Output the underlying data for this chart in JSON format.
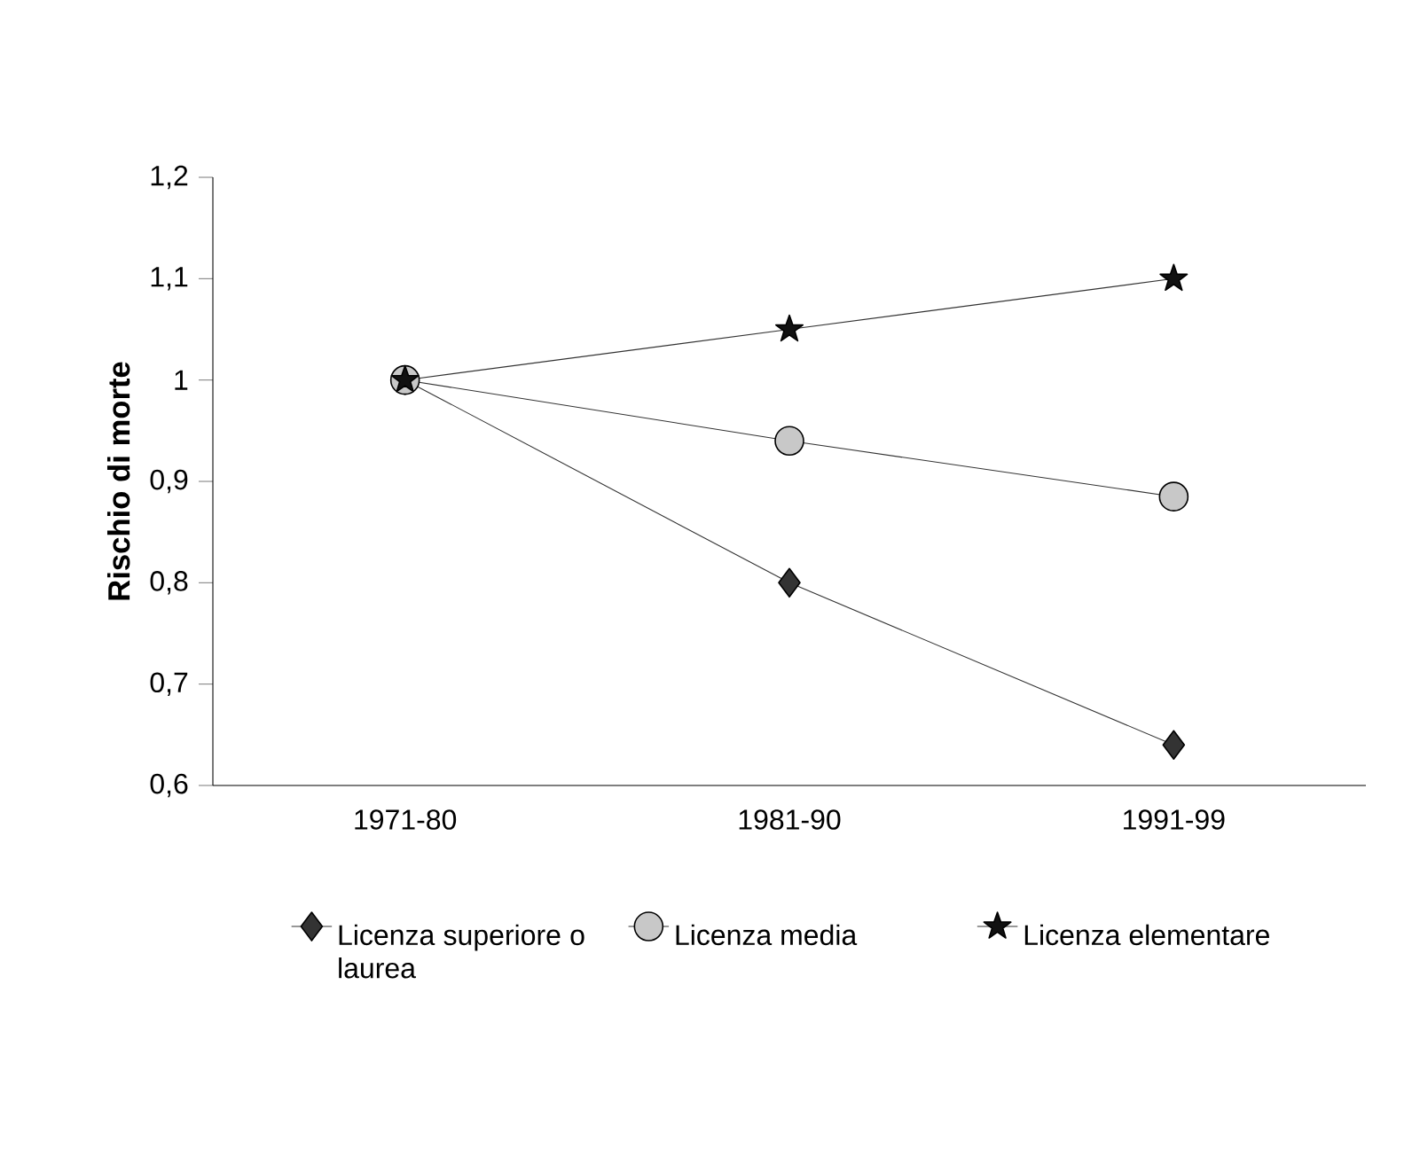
{
  "chart_data": {
    "type": "line",
    "ylabel": "Rischio di morte",
    "categories": [
      "1971-80",
      "1981-90",
      "1991-99"
    ],
    "series": [
      {
        "name": "Licenza superiore o laurea",
        "color": "#333333",
        "marker": "diamond",
        "values": [
          1,
          0.8,
          0.64
        ]
      },
      {
        "name": "Licenza media",
        "color": "#c8c8c8",
        "marker": "circle",
        "values": [
          1,
          0.94,
          0.885
        ]
      },
      {
        "name": "Licenza elementare",
        "color": "#111111",
        "marker": "star",
        "values": [
          1,
          1.05,
          1.1
        ]
      }
    ],
    "ylim": [
      0.6,
      1.2
    ],
    "yticks": [
      {
        "value": 0.6,
        "label": "0,6"
      },
      {
        "value": 0.7,
        "label": "0,7"
      },
      {
        "value": 0.8,
        "label": "0,8"
      },
      {
        "value": 0.9,
        "label": "0,9"
      },
      1,
      {
        "value": 1.1,
        "label": "1,1"
      },
      {
        "value": 1.2,
        "label": "1,2"
      }
    ],
    "legend": "bottom",
    "grid": false,
    "line_style": "solid"
  }
}
